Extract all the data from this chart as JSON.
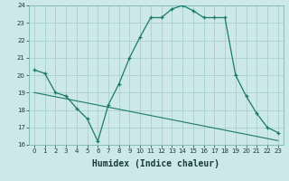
{
  "title": "",
  "xlabel": "Humidex (Indice chaleur)",
  "background_color": "#cce8e8",
  "grid_color": "#aad0d0",
  "line_color": "#1a7a6a",
  "hours": [
    0,
    1,
    2,
    3,
    4,
    5,
    6,
    7,
    8,
    9,
    10,
    11,
    12,
    13,
    14,
    15,
    16,
    17,
    18,
    19,
    20,
    21,
    22,
    23
  ],
  "humidex": [
    20.3,
    20.1,
    19.0,
    18.8,
    18.1,
    17.5,
    16.2,
    18.3,
    19.5,
    21.0,
    22.2,
    23.3,
    23.3,
    23.8,
    24.0,
    23.7,
    23.3,
    23.3,
    23.3,
    20.0,
    18.8,
    17.8,
    17.0,
    16.7
  ],
  "trend": [
    19.0,
    18.88,
    18.76,
    18.64,
    18.52,
    18.4,
    18.28,
    18.16,
    18.04,
    17.92,
    17.8,
    17.68,
    17.56,
    17.44,
    17.32,
    17.2,
    17.08,
    16.96,
    16.84,
    16.72,
    16.6,
    16.48,
    16.36,
    16.24
  ],
  "ylim": [
    16,
    24
  ],
  "xlim": [
    -0.5,
    23.5
  ],
  "yticks": [
    16,
    17,
    18,
    19,
    20,
    21,
    22,
    23,
    24
  ],
  "tick_fontsize": 5,
  "xlabel_fontsize": 7
}
